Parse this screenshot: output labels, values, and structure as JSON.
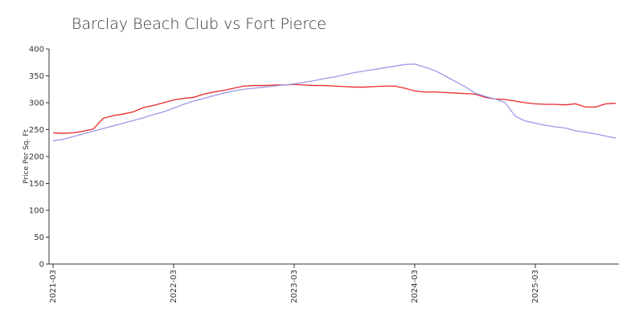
{
  "chart_data": {
    "type": "line",
    "title": "Barclay Beach Club vs Fort Pierce",
    "y_label": "Price Per Sq. Ft",
    "categories": [
      "2021-03",
      null,
      null,
      null,
      null,
      null,
      null,
      null,
      null,
      null,
      null,
      null,
      "2022-03",
      null,
      null,
      null,
      null,
      null,
      null,
      null,
      null,
      null,
      null,
      null,
      "2023-03",
      null,
      null,
      null,
      null,
      null,
      null,
      null,
      null,
      null,
      null,
      null,
      "2024-03",
      null,
      null,
      null,
      null,
      null,
      null,
      null,
      null,
      null,
      null,
      null,
      "2025-03",
      null,
      null,
      null,
      null,
      null,
      null,
      null,
      null
    ],
    "series": [
      {
        "color": "#e8262a",
        "values": [
          244,
          243,
          244,
          247,
          251,
          271,
          276,
          279,
          283,
          291,
          295,
          300,
          305,
          308,
          310,
          316,
          320,
          323,
          327,
          331,
          332,
          332,
          333,
          333,
          334,
          333,
          332,
          332,
          331,
          330,
          329,
          329,
          330,
          331,
          331,
          327,
          322,
          320,
          320,
          319,
          318,
          317,
          316,
          310,
          307,
          306,
          303,
          300,
          298,
          297,
          297,
          296,
          298,
          292,
          292,
          298,
          299
        ]
      },
      {
        "color": "#9a9ae8",
        "values": [
          229,
          232,
          237,
          242,
          247,
          252,
          257,
          262,
          267,
          272,
          278,
          283,
          290,
          297,
          303,
          308,
          313,
          318,
          322,
          325,
          327,
          329,
          331,
          333,
          335,
          338,
          341,
          345,
          348,
          352,
          356,
          359,
          362,
          365,
          368,
          371,
          372,
          366,
          360,
          350,
          340,
          330,
          318,
          312,
          307,
          300,
          275,
          266,
          262,
          258,
          255,
          253,
          248,
          245,
          242,
          238,
          234
        ]
      }
    ],
    "ylim": [
      0,
      400
    ],
    "yticks": [
      0,
      50,
      100,
      150,
      200,
      250,
      300,
      350,
      400
    ]
  }
}
